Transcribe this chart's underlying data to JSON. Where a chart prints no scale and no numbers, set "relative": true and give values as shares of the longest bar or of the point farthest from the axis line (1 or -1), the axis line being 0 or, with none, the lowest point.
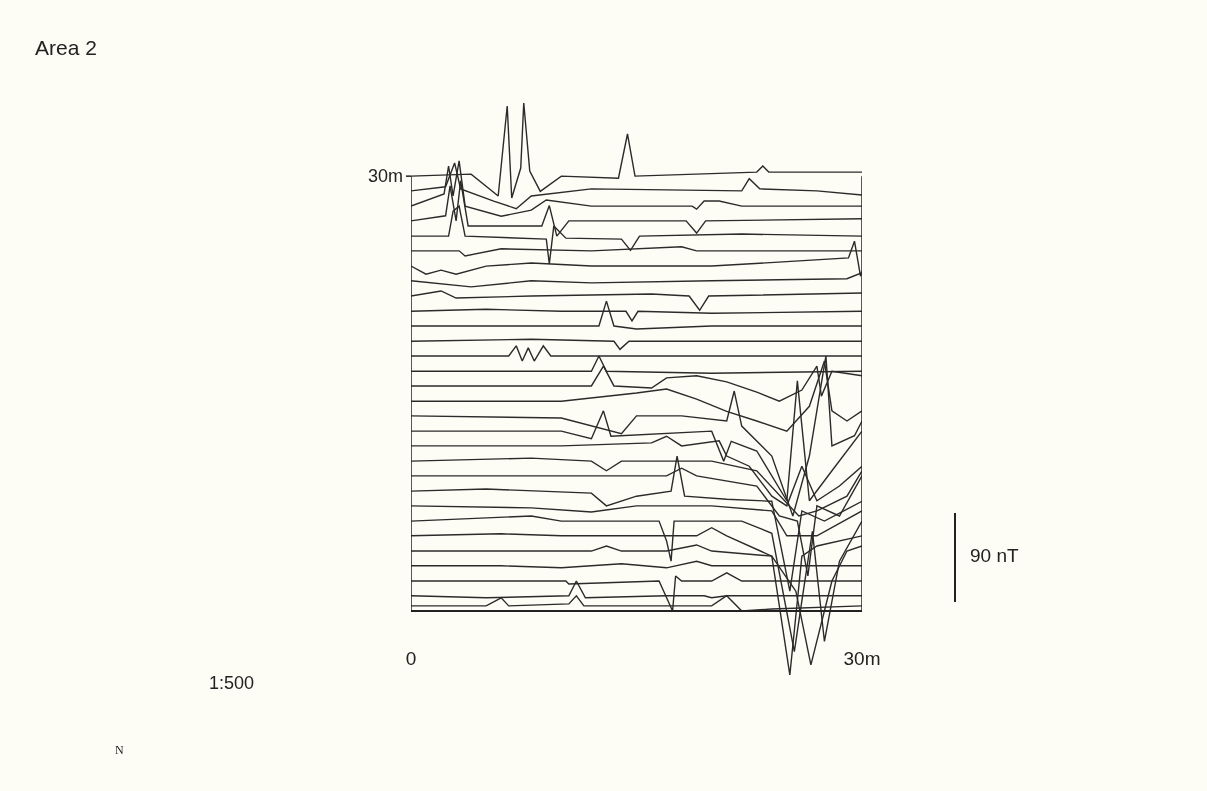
{
  "chart_data": {
    "type": "line",
    "title": "Area 2",
    "relative": true,
    "color": "#2b2b2b",
    "grid": false,
    "marker": "none",
    "line_style": "solid",
    "xlim": [
      0,
      30
    ],
    "xticks": [
      {
        "value": 0,
        "label": "0"
      },
      {
        "value": 30,
        "label": "30m"
      }
    ],
    "annotations": [
      "30m",
      "90 nT",
      "1:500",
      "N"
    ],
    "series": [
      {
        "x": [
          0,
          4,
          5.8,
          6.4,
          6.7,
          7.3,
          7.5,
          7.9,
          8.6,
          10,
          13.8,
          14.4,
          14.9,
          23,
          23.4,
          23.8,
          30
        ],
        "values": [
          0.856,
          0.86,
          0.817,
          0.994,
          0.813,
          0.872,
          1.0,
          0.866,
          0.826,
          0.856,
          0.852,
          0.939,
          0.856,
          0.864,
          0.876,
          0.864,
          0.864
        ]
      },
      {
        "x": [
          0,
          2.3,
          2.9,
          3.3,
          5.5,
          7,
          8,
          12,
          22,
          22.5,
          23.2,
          27,
          30
        ],
        "values": [
          0.827,
          0.835,
          0.882,
          0.831,
          0.807,
          0.792,
          0.817,
          0.831,
          0.827,
          0.851,
          0.831,
          0.827,
          0.819
        ]
      },
      {
        "x": [
          0,
          2.2,
          2.5,
          2.8,
          3.2,
          3.6,
          6,
          8,
          9,
          12,
          18.7,
          19,
          19.5,
          20.5,
          22,
          30
        ],
        "values": [
          0.797,
          0.821,
          0.876,
          0.817,
          0.886,
          0.797,
          0.777,
          0.789,
          0.809,
          0.797,
          0.797,
          0.791,
          0.807,
          0.807,
          0.797,
          0.797
        ]
      },
      {
        "x": [
          0,
          2.3,
          2.6,
          3,
          3.3,
          3.8,
          8.7,
          9.2,
          9.7,
          10.5,
          18.3,
          19,
          19.6,
          30
        ],
        "values": [
          0.768,
          0.778,
          0.837,
          0.768,
          0.847,
          0.758,
          0.758,
          0.798,
          0.738,
          0.768,
          0.768,
          0.744,
          0.768,
          0.772
        ]
      },
      {
        "x": [
          0,
          2.5,
          2.8,
          3.2,
          3.6,
          9,
          9.2,
          9.5,
          10.3,
          14,
          14.6,
          15.2,
          22,
          30
        ],
        "values": [
          0.738,
          0.738,
          0.787,
          0.797,
          0.738,
          0.732,
          0.683,
          0.758,
          0.734,
          0.732,
          0.71,
          0.738,
          0.742,
          0.738
        ]
      },
      {
        "x": [
          0,
          3.2,
          3.6,
          6,
          12,
          18,
          19,
          30
        ],
        "values": [
          0.709,
          0.709,
          0.699,
          0.713,
          0.709,
          0.717,
          0.709,
          0.709
        ]
      },
      {
        "x": [
          0,
          1,
          2,
          3,
          5,
          8,
          12,
          20,
          29.1,
          29.5,
          29.9,
          30
        ],
        "values": [
          0.679,
          0.663,
          0.671,
          0.663,
          0.679,
          0.685,
          0.679,
          0.679,
          0.695,
          0.728,
          0.659,
          0.669
        ]
      },
      {
        "x": [
          0,
          4,
          8,
          12,
          20,
          29,
          30
        ],
        "values": [
          0.65,
          0.638,
          0.65,
          0.646,
          0.65,
          0.654,
          0.666
        ]
      },
      {
        "x": [
          0,
          2,
          3,
          8,
          16,
          18.5,
          19.2,
          19.8,
          30
        ],
        "values": [
          0.62,
          0.63,
          0.616,
          0.62,
          0.624,
          0.62,
          0.592,
          0.62,
          0.626
        ]
      },
      {
        "x": [
          0,
          5,
          10,
          14.3,
          14.7,
          15.1,
          20,
          30
        ],
        "values": [
          0.59,
          0.594,
          0.59,
          0.59,
          0.571,
          0.59,
          0.586,
          0.59
        ]
      },
      {
        "x": [
          0,
          6,
          12.5,
          13,
          13.5,
          15,
          20,
          30
        ],
        "values": [
          0.561,
          0.561,
          0.561,
          0.61,
          0.561,
          0.555,
          0.561,
          0.561
        ]
      },
      {
        "x": [
          0,
          8,
          13.5,
          13.9,
          14.5,
          30
        ],
        "values": [
          0.531,
          0.535,
          0.531,
          0.515,
          0.531,
          0.531
        ]
      },
      {
        "x": [
          0,
          6.5,
          7,
          7.4,
          7.8,
          8.2,
          8.8,
          9.3,
          20,
          30
        ],
        "values": [
          0.502,
          0.502,
          0.522,
          0.492,
          0.518,
          0.492,
          0.522,
          0.502,
          0.502,
          0.502
        ]
      },
      {
        "x": [
          0,
          12,
          12.5,
          13,
          20,
          30
        ],
        "values": [
          0.472,
          0.472,
          0.502,
          0.472,
          0.468,
          0.472
        ]
      },
      {
        "x": [
          0,
          12,
          12.8,
          13.5,
          16,
          17,
          19,
          21,
          23,
          24.5,
          26,
          27,
          27.3,
          28,
          30
        ],
        "values": [
          0.443,
          0.443,
          0.482,
          0.443,
          0.439,
          0.459,
          0.463,
          0.451,
          0.431,
          0.413,
          0.435,
          0.482,
          0.423,
          0.472,
          0.463
        ]
      },
      {
        "x": [
          0,
          10,
          15,
          17,
          19,
          21,
          23,
          25,
          26.5,
          27.5,
          28,
          29,
          30
        ],
        "values": [
          0.413,
          0.413,
          0.429,
          0.437,
          0.417,
          0.393,
          0.374,
          0.354,
          0.403,
          0.492,
          0.394,
          0.374,
          0.394
        ]
      },
      {
        "x": [
          0,
          10,
          14,
          15,
          18,
          21,
          21.5,
          22,
          24,
          25.4,
          26.5,
          27.6,
          28,
          29.5,
          30
        ],
        "values": [
          0.384,
          0.38,
          0.349,
          0.384,
          0.384,
          0.374,
          0.433,
          0.364,
          0.305,
          0.187,
          0.305,
          0.502,
          0.325,
          0.345,
          0.374
        ]
      },
      {
        "x": [
          0,
          10,
          12,
          12.8,
          13.3,
          20,
          20.8,
          21.3,
          23,
          25,
          25.7,
          26.5,
          28,
          30
        ],
        "values": [
          0.354,
          0.354,
          0.339,
          0.394,
          0.344,
          0.354,
          0.295,
          0.334,
          0.315,
          0.217,
          0.453,
          0.217,
          0.276,
          0.354
        ]
      },
      {
        "x": [
          0,
          10,
          16,
          17,
          18,
          20.5,
          21,
          22.5,
          24,
          25,
          26,
          27,
          28.5,
          30
        ],
        "values": [
          0.325,
          0.325,
          0.331,
          0.344,
          0.325,
          0.335,
          0.305,
          0.285,
          0.226,
          0.207,
          0.285,
          0.217,
          0.246,
          0.285
        ]
      },
      {
        "x": [
          0,
          8,
          12,
          13,
          14,
          18,
          20,
          23,
          25.8,
          27,
          29,
          30
        ],
        "values": [
          0.295,
          0.301,
          0.295,
          0.276,
          0.295,
          0.295,
          0.295,
          0.276,
          0.187,
          0.197,
          0.226,
          0.276
        ]
      },
      {
        "x": [
          0,
          10,
          14,
          17,
          18,
          19,
          23,
          24.5,
          25.7,
          26.4,
          27,
          28.5,
          30
        ],
        "values": [
          0.266,
          0.266,
          0.266,
          0.266,
          0.281,
          0.266,
          0.246,
          0.187,
          0.177,
          0.069,
          0.207,
          0.187,
          0.266
        ]
      },
      {
        "x": [
          0,
          5,
          12,
          13,
          15,
          17.3,
          17.7,
          18.2,
          21,
          24,
          25.2,
          26,
          27.5,
          30
        ],
        "values": [
          0.236,
          0.24,
          0.232,
          0.207,
          0.226,
          0.236,
          0.305,
          0.226,
          0.22,
          0.216,
          0.039,
          0.197,
          0.177,
          0.216
        ]
      },
      {
        "x": [
          0,
          8,
          12,
          15,
          20,
          24,
          25,
          27,
          30
        ],
        "values": [
          0.207,
          0.203,
          0.195,
          0.207,
          0.207,
          0.197,
          0.148,
          0.148,
          0.197
        ]
      },
      {
        "x": [
          0,
          8,
          10,
          16.5,
          17,
          17.3,
          17.5,
          22,
          24,
          25.5,
          26,
          26.7,
          27.5,
          28.5,
          30
        ],
        "values": [
          0.177,
          0.187,
          0.177,
          0.177,
          0.138,
          0.098,
          0.177,
          0.177,
          0.153,
          -0.08,
          0.02,
          0.157,
          -0.06,
          0.098,
          0.177
        ]
      },
      {
        "x": [
          0,
          6,
          10,
          19,
          20,
          21,
          24,
          25.2,
          26,
          27,
          30
        ],
        "values": [
          0.148,
          0.152,
          0.148,
          0.148,
          0.164,
          0.148,
          0.108,
          -0.126,
          0.108,
          0.128,
          0.148
        ]
      },
      {
        "x": [
          0,
          12,
          13,
          14,
          17,
          19,
          20,
          24,
          25.6,
          26.6,
          28,
          29,
          30
        ],
        "values": [
          0.118,
          0.118,
          0.128,
          0.118,
          0.118,
          0.13,
          0.118,
          0.108,
          0.039,
          -0.106,
          0.059,
          0.118,
          0.128
        ]
      },
      {
        "x": [
          0,
          6,
          10,
          14,
          17,
          19,
          20,
          24,
          30
        ],
        "values": [
          0.089,
          0.089,
          0.085,
          0.093,
          0.085,
          0.098,
          0.089,
          0.089,
          0.089
        ]
      },
      {
        "x": [
          0,
          8,
          10.3,
          10.5,
          16.5,
          17.4,
          17.6,
          18,
          20,
          21,
          22,
          30
        ],
        "values": [
          0.059,
          0.059,
          0.059,
          0.053,
          0.059,
          0.0,
          0.069,
          0.059,
          0.059,
          0.075,
          0.059,
          0.059
        ]
      },
      {
        "x": [
          0,
          5,
          10.5,
          11,
          11.6,
          17,
          19.5,
          20,
          21,
          30
        ],
        "values": [
          0.03,
          0.026,
          0.03,
          0.059,
          0.026,
          0.03,
          0.03,
          0.026,
          0.03,
          0.03
        ]
      },
      {
        "x": [
          0,
          5,
          6,
          6.5,
          10.5,
          11,
          11.5,
          20,
          21,
          22,
          24,
          30
        ],
        "values": [
          0.01,
          0.01,
          0.026,
          0.01,
          0.014,
          0.03,
          0.01,
          0.01,
          0.03,
          0.0,
          0.004,
          0.01
        ]
      }
    ]
  }
}
